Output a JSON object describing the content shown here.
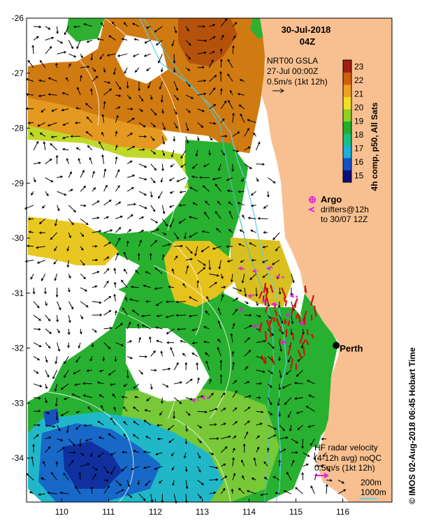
{
  "header": {
    "date": "30-Jul-2018",
    "time": "04Z"
  },
  "sla_legend": {
    "line1": "NRT00 GSLA",
    "line2": "27-Jul 00:00Z",
    "line3": "0.5m/s (1kt 12h)"
  },
  "drifters_legend": {
    "argo": "Argo",
    "line1": "drifters@12h",
    "line2": "to 30/07 12Z"
  },
  "radar_legend": {
    "line1": "HF radar velocity",
    "line2": "(4-12h avg) noQC",
    "line3": "0.5m/s (1kt 12h)"
  },
  "bathymetry_legend": {
    "contour1": "200m",
    "contour2": "1000m"
  },
  "city": {
    "name": "Perth",
    "lon": 115.86,
    "lat": -31.95
  },
  "colorbar": {
    "title": "4h comp, p50, All Sats",
    "ticks": [
      "15",
      "16",
      "17",
      "18",
      "19",
      "20",
      "21",
      "22",
      "23"
    ],
    "min": 14.5,
    "max": 23.5,
    "colors": [
      "#0a1080",
      "#1550c8",
      "#1ab0e0",
      "#18c080",
      "#20b030",
      "#90d020",
      "#f0e020",
      "#f0a020",
      "#d06010",
      "#a02010"
    ]
  },
  "side_caption": "© IMOS 02-Aug-2018 06:45 Hobart Time",
  "axes": {
    "lon_min": 109.25,
    "lon_max": 117.05,
    "lat_min": -34.8,
    "lat_max": -26.0,
    "x_ticks": [
      "110",
      "111",
      "112",
      "113",
      "114",
      "115",
      "116"
    ],
    "y_ticks": [
      "-26",
      "-27",
      "-28",
      "-29",
      "-30",
      "-31",
      "-32",
      "-33",
      "-34"
    ]
  },
  "colors": {
    "land": "#f8c090",
    "no_data": "#ffffff",
    "orange_sst": "#d8780e",
    "green_sst": "#28b030",
    "radar_arrow": "#d01010",
    "drifter": "#e020e0",
    "bathy": "#40d0e8"
  }
}
